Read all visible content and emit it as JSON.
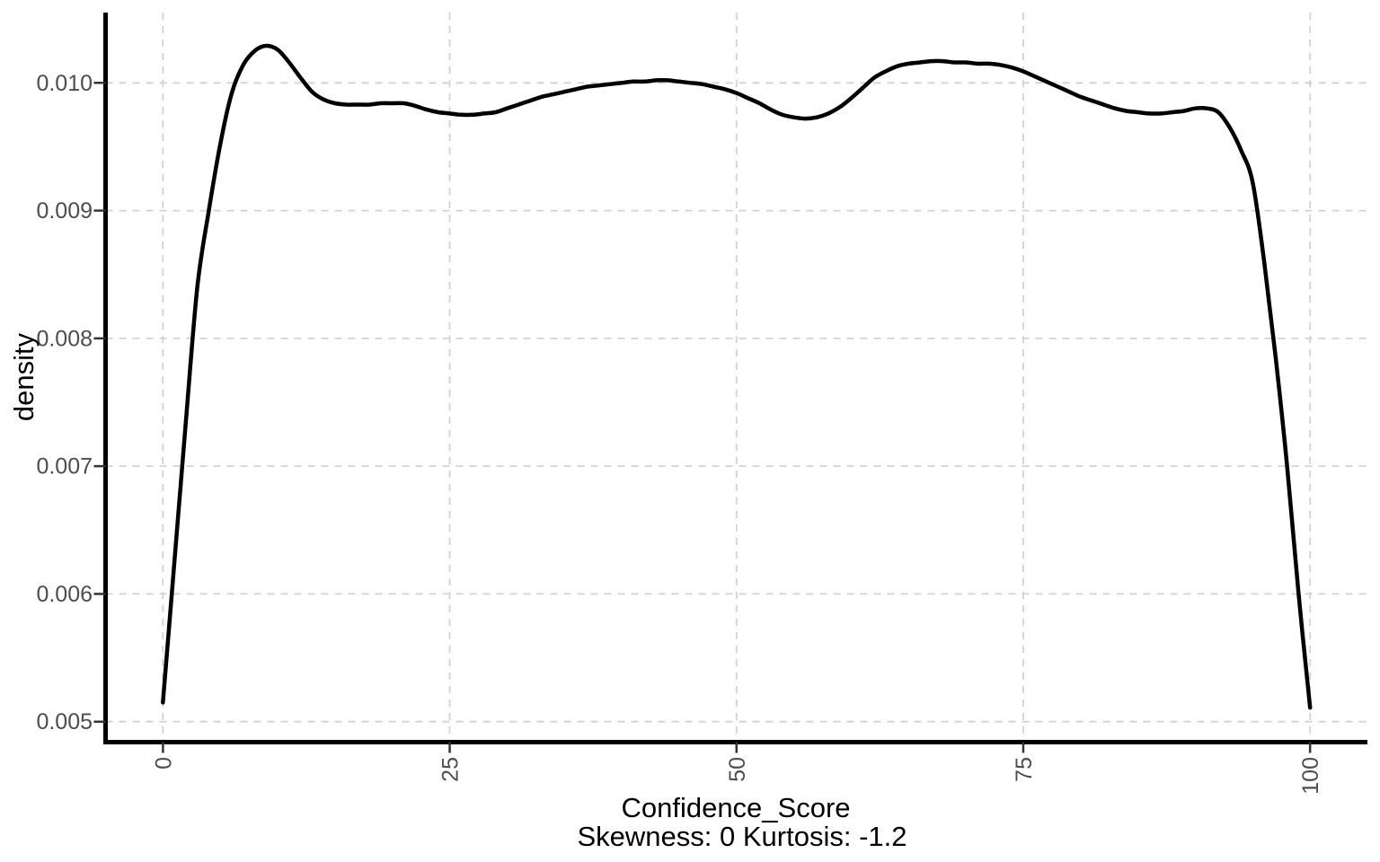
{
  "figure": {
    "background": "#ffffff"
  },
  "chart_data": {
    "type": "line",
    "subtype": "density-curve",
    "title": "",
    "xlabel": "Confidence_Score",
    "subtitle": "Skewness: 0 Kurtosis: -1.2",
    "ylabel": "density",
    "legend": "none",
    "grid": "major-dashed",
    "xlim": [
      -5,
      105
    ],
    "ylim": [
      0.00484,
      0.01055
    ],
    "x_ticks": {
      "values": [
        0,
        25,
        50,
        75,
        100
      ],
      "labels": [
        "0",
        "25",
        "50",
        "75",
        "100"
      ],
      "label_rotation_deg": 90
    },
    "y_ticks": {
      "values": [
        0.005,
        0.006,
        0.007,
        0.008,
        0.009,
        0.01
      ],
      "labels": [
        "0.005",
        "0.006",
        "0.007",
        "0.008",
        "0.009",
        "0.010"
      ]
    },
    "series": [
      {
        "name": "density of Confidence_Score",
        "x": [
          0,
          1,
          2,
          3,
          4,
          5,
          6,
          7,
          8,
          9,
          10,
          11,
          12,
          13,
          14,
          15,
          16,
          17,
          18,
          19,
          20,
          21,
          22,
          23,
          24,
          25,
          26,
          27,
          28,
          29,
          30,
          31,
          32,
          33,
          34,
          35,
          36,
          37,
          38,
          39,
          40,
          41,
          42,
          43,
          44,
          45,
          46,
          47,
          48,
          49,
          50,
          51,
          52,
          53,
          54,
          55,
          56,
          57,
          58,
          59,
          60,
          61,
          62,
          63,
          64,
          65,
          66,
          67,
          68,
          69,
          70,
          71,
          72,
          73,
          74,
          75,
          76,
          77,
          78,
          79,
          80,
          81,
          82,
          83,
          84,
          85,
          86,
          87,
          88,
          89,
          90,
          91,
          92,
          93,
          94,
          95,
          96,
          97,
          98,
          99,
          100
        ],
        "y": [
          0.00515,
          0.00625,
          0.00735,
          0.0084,
          0.009,
          0.00952,
          0.00992,
          0.01014,
          0.01025,
          0.01029,
          0.01026,
          0.01016,
          0.01004,
          0.00993,
          0.00987,
          0.00984,
          0.00983,
          0.00983,
          0.00983,
          0.00984,
          0.00984,
          0.00984,
          0.00982,
          0.00979,
          0.00977,
          0.00976,
          0.00975,
          0.00975,
          0.00976,
          0.00977,
          0.0098,
          0.00983,
          0.00986,
          0.00989,
          0.00991,
          0.00993,
          0.00995,
          0.00997,
          0.00998,
          0.00999,
          0.01,
          0.01001,
          0.01001,
          0.01002,
          0.01002,
          0.01001,
          0.01,
          0.00999,
          0.00997,
          0.00995,
          0.00992,
          0.00988,
          0.00984,
          0.00979,
          0.00975,
          0.00973,
          0.00972,
          0.00973,
          0.00976,
          0.00981,
          0.00988,
          0.00996,
          0.01004,
          0.01009,
          0.01013,
          0.01015,
          0.01016,
          0.01017,
          0.01017,
          0.01016,
          0.01016,
          0.01015,
          0.01015,
          0.01014,
          0.01012,
          0.01009,
          0.01005,
          0.01001,
          0.00997,
          0.00993,
          0.00989,
          0.00986,
          0.00983,
          0.0098,
          0.00978,
          0.00977,
          0.00976,
          0.00976,
          0.00977,
          0.00978,
          0.0098,
          0.0098,
          0.00977,
          0.00965,
          0.00947,
          0.00922,
          0.0086,
          0.00785,
          0.007,
          0.006,
          0.00511
        ]
      }
    ],
    "colors": {
      "curve": "#000000",
      "gridline": "#d3d3d3",
      "axis_line": "#000000",
      "tick_mark": "#333333",
      "tick_label": "#4d4d4d",
      "axis_title": "#000000",
      "panel_background": "#ffffff"
    }
  }
}
